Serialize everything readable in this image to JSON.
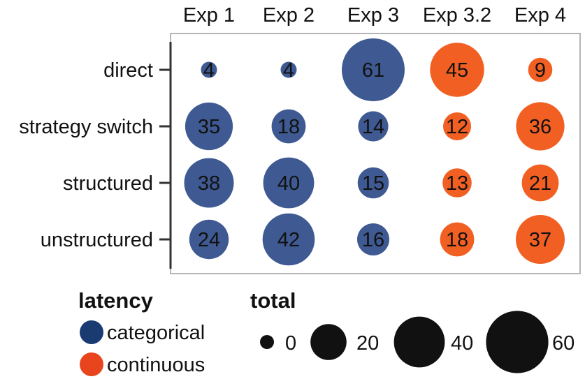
{
  "chart_data": {
    "type": "bubble-matrix",
    "columns": [
      "Exp 1",
      "Exp 2",
      "Exp 3",
      "Exp 3.2",
      "Exp 4"
    ],
    "rows": [
      "direct",
      "strategy switch",
      "structured",
      "unstructured"
    ],
    "values": [
      [
        4,
        4,
        61,
        45,
        9
      ],
      [
        35,
        18,
        14,
        12,
        36
      ],
      [
        38,
        40,
        15,
        13,
        21
      ],
      [
        24,
        42,
        16,
        18,
        37
      ]
    ],
    "latency_by_column": [
      "categorical",
      "categorical",
      "categorical",
      "continuous",
      "continuous"
    ],
    "color_legend": {
      "title": "latency",
      "items": [
        {
          "label": "categorical",
          "color": "#1a3a72"
        },
        {
          "label": "continuous",
          "color": "#e8451e"
        }
      ]
    },
    "bubble_colors": {
      "categorical": "#3f5a92",
      "continuous": "#f25f22"
    },
    "size_legend": {
      "title": "total",
      "values": [
        0,
        20,
        40,
        60
      ]
    },
    "size_range": [
      0,
      61
    ],
    "grid": false
  }
}
